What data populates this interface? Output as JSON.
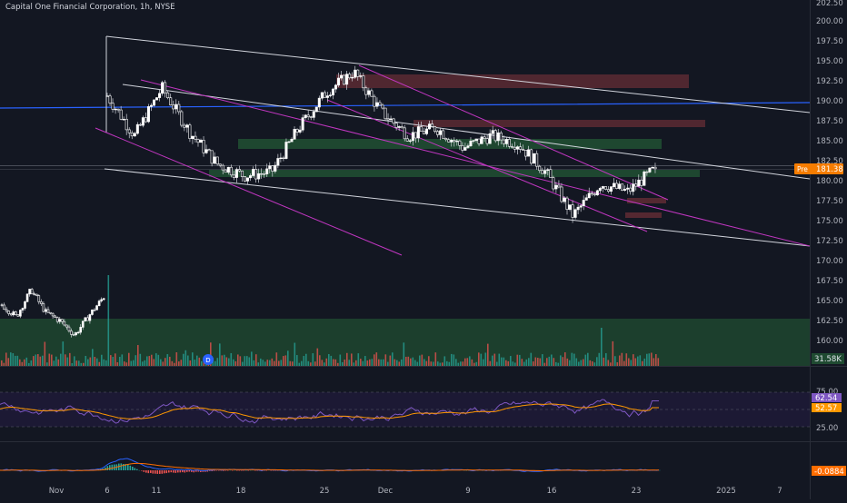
{
  "header": {
    "symbol": "Capital One Financial Corporation",
    "interval": "1h",
    "exchange": "NYSE",
    "title_line": "Capital One Financial Corporation, 1h, NYSE"
  },
  "colors": {
    "background": "#131722",
    "up": "#ffffff",
    "down": "#ffffff",
    "channel_lines": "#d1d4dc",
    "purple_lines": "#c036c0",
    "blue_line": "#2962ff",
    "resistance_zone": "#5c2a33",
    "support_zone": "#1f4a31",
    "rsi": "#7e57c2",
    "rsi_ma": "#ff9800",
    "macd": "#2962ff",
    "signal": "#ff6d00",
    "price_label_bg": "#f57c00"
  },
  "price_scale": {
    "ticks": [
      "202.50",
      "200.00",
      "197.50",
      "195.00",
      "192.50",
      "190.00",
      "187.50",
      "185.00",
      "182.50",
      "180.00",
      "177.50",
      "175.00",
      "172.50",
      "170.00",
      "167.50",
      "165.00",
      "162.50",
      "160.00"
    ],
    "last_price_label": "Pre",
    "last_price": "181.38",
    "volume_label": "31.58K"
  },
  "rsi_panel": {
    "ticks": [
      "75.00",
      "25.00"
    ],
    "rsi_value": "62.54",
    "ma_value": "52.57"
  },
  "macd_panel": {
    "value": "-0.0884"
  },
  "time_axis": {
    "labels": [
      "Nov",
      "6",
      "11",
      "18",
      "25",
      "Dec",
      "9",
      "16",
      "23",
      "2025",
      "7"
    ]
  },
  "dividend_marker": "D",
  "chart_data": {
    "type": "candlestick",
    "title": "Capital One Financial Corporation, 1h, NYSE",
    "y_range": [
      160,
      203
    ],
    "last_price": 181.38,
    "close_path": [
      {
        "x": "Nov 6",
        "close": 190.5
      },
      {
        "x": "Nov 7",
        "close": 185.5
      },
      {
        "x": "Nov 11",
        "close": 191.5
      },
      {
        "x": "Nov 13",
        "close": 186.0
      },
      {
        "x": "Nov 15",
        "close": 182.0
      },
      {
        "x": "Nov 18",
        "close": 180.5
      },
      {
        "x": "Nov 20",
        "close": 181.0
      },
      {
        "x": "Nov 22",
        "close": 186.5
      },
      {
        "x": "Nov 25",
        "close": 191.0
      },
      {
        "x": "Nov 27",
        "close": 193.5
      },
      {
        "x": "Dec 2",
        "close": 188.5
      },
      {
        "x": "Dec 5",
        "close": 185.5
      },
      {
        "x": "Dec 9",
        "close": 186.5
      },
      {
        "x": "Dec 11",
        "close": 184.0
      },
      {
        "x": "Dec 13",
        "close": 185.5
      },
      {
        "x": "Dec 16",
        "close": 184.5
      },
      {
        "x": "Dec 18",
        "close": 181.0
      },
      {
        "x": "Dec 19",
        "close": 175.5
      },
      {
        "x": "Dec 20",
        "close": 179.5
      },
      {
        "x": "Dec 23",
        "close": 178.5
      },
      {
        "x": "Dec 24",
        "close": 181.38
      }
    ],
    "resistance_zones": [
      {
        "top": 193.4,
        "bottom": 191.7,
        "start": "Nov 26",
        "end": "Dec 27"
      },
      {
        "top": 187.3,
        "bottom": 186.6,
        "start": "Dec 2",
        "end": "Dec 27"
      },
      {
        "top": 177.5,
        "bottom": 177.2,
        "start": "Dec 20",
        "end": "Dec 24"
      },
      {
        "top": 175.7,
        "bottom": 175.4,
        "start": "Dec 20",
        "end": "Dec 24"
      }
    ],
    "support_zones": [
      {
        "top": 185.0,
        "bottom": 184.3,
        "start": "Nov 19",
        "end": "Dec 24"
      },
      {
        "top": 180.8,
        "bottom": 180.4,
        "start": "Nov 13",
        "end": "Dec 27"
      },
      {
        "top": 162.5,
        "bottom": 160.0,
        "start": "Oct 30",
        "end": "Dec 31"
      }
    ],
    "horizontal_lines": [
      {
        "value": 189.5,
        "color": "#2962ff"
      }
    ],
    "rsi": {
      "value": 62.54,
      "ma": 52.57,
      "levels": [
        75,
        25
      ]
    },
    "macd": {
      "value": -0.0884
    }
  }
}
